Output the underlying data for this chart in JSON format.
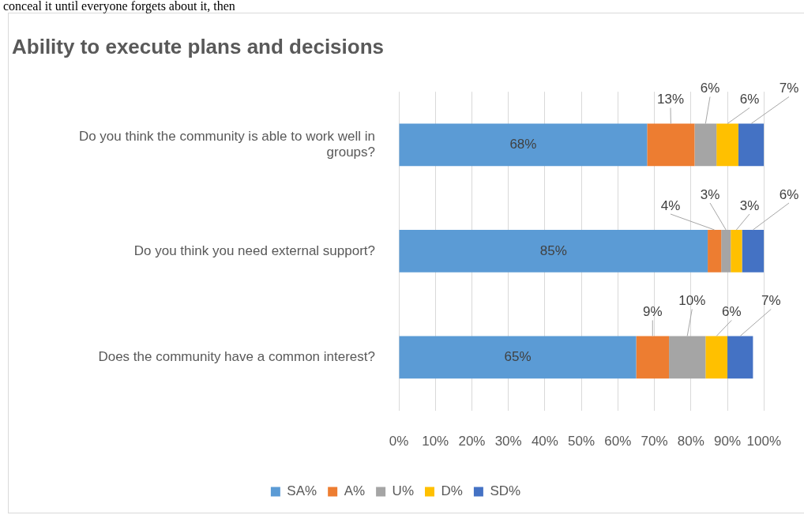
{
  "chart_data": {
    "type": "bar",
    "orientation": "horizontal",
    "stacked": true,
    "title": "Ability to execute plans and decisions",
    "annotations": [
      "conceal it until everyone forgets about it, then"
    ],
    "categories": [
      "Do you think the community is able to work well in groups?",
      "Do you think you need external support?",
      "Does the community have a common interest?"
    ],
    "series": [
      {
        "name": "SA%",
        "color": "#5b9bd5",
        "values": [
          68,
          84.6,
          65
        ],
        "value_labels": [
          "68%",
          "85%",
          "65%"
        ]
      },
      {
        "name": "A%",
        "color": "#ed7d31",
        "values": [
          13,
          3.7,
          9
        ],
        "value_labels": [
          "13%",
          "4%",
          "9%"
        ]
      },
      {
        "name": "U%",
        "color": "#a5a5a5",
        "values": [
          6,
          2.6,
          10
        ],
        "value_labels": [
          "6%",
          "3%",
          "10%"
        ]
      },
      {
        "name": "D%",
        "color": "#ffc000",
        "values": [
          6,
          3.1,
          6
        ],
        "value_labels": [
          "6%",
          "3%",
          "6%"
        ]
      },
      {
        "name": "SD%",
        "color": "#4472c4",
        "values": [
          7,
          6,
          7
        ],
        "value_labels": [
          "7%",
          "6%",
          "7%"
        ]
      }
    ],
    "xlim": [
      0,
      100
    ],
    "xticks": [
      {
        "value": 0,
        "label": "0%"
      },
      {
        "value": 10,
        "label": "10%"
      },
      {
        "value": 20,
        "label": "20%"
      },
      {
        "value": 30,
        "label": "30%"
      },
      {
        "value": 40,
        "label": "40%"
      },
      {
        "value": 50,
        "label": "50%"
      },
      {
        "value": 60,
        "label": "60%"
      },
      {
        "value": 70,
        "label": "70%"
      },
      {
        "value": 80,
        "label": "80%"
      },
      {
        "value": 90,
        "label": "90%"
      },
      {
        "value": 100,
        "label": "100%"
      }
    ],
    "grid": "x",
    "legend": "bottom"
  }
}
